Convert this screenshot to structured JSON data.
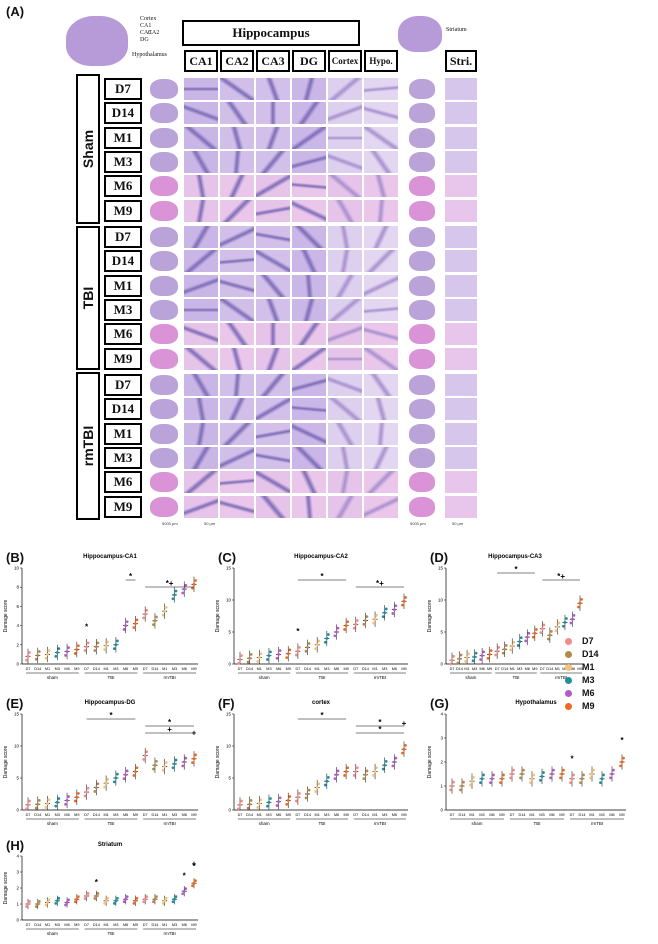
{
  "figure_label_a": "(A)",
  "atlas_left": {
    "labels": [
      "Cortex",
      "CA1",
      "CA2",
      "CA3",
      "DG",
      "Hypothalamus"
    ]
  },
  "atlas_right": {
    "label": "Striatum"
  },
  "hippocampus_header": "Hippocampus",
  "column_headers": [
    "CA1",
    "CA2",
    "CA3",
    "DG",
    "Cortex",
    "Hypo."
  ],
  "stri_header": "Stri.",
  "groups": [
    "Sham",
    "TBI",
    "rmTBI"
  ],
  "timepoints": [
    "D7",
    "D14",
    "M1",
    "M3",
    "M6",
    "M9"
  ],
  "scale_bars": [
    "5000 μm",
    "50 μm",
    "5000 μm",
    "50 μm"
  ],
  "legend": {
    "items": [
      {
        "label": "D7",
        "color": "#f28b8b"
      },
      {
        "label": "D14",
        "color": "#b38a4a"
      },
      {
        "label": "M1",
        "color": "#f4c27a"
      },
      {
        "label": "M3",
        "color": "#1f8fa0"
      },
      {
        "label": "M6",
        "color": "#b35cc7"
      },
      {
        "label": "M9",
        "color": "#ee6a1f"
      }
    ]
  },
  "chart_data": [
    {
      "id": "B",
      "type": "scatter",
      "title": "Hippocampus-CA1",
      "ylabel": "Damage score",
      "ylim": [
        0,
        10
      ],
      "yticks": [
        0,
        2,
        4,
        6,
        8,
        10
      ],
      "categories": [
        "D7",
        "D14",
        "M1",
        "M3",
        "M6",
        "M9",
        "D7",
        "D14",
        "M1",
        "M3",
        "M6",
        "M9",
        "D7",
        "D14",
        "M1",
        "M3",
        "M6",
        "M9"
      ],
      "group_labels": [
        "sham",
        "TBI",
        "rmTBI"
      ],
      "values": [
        0.8,
        0.9,
        1.0,
        1.2,
        1.3,
        1.5,
        1.8,
        1.8,
        1.9,
        2.0,
        4.0,
        4.2,
        5.2,
        4.5,
        5.5,
        7.2,
        7.8,
        8.3
      ],
      "annotations": [
        {
          "text": "*",
          "at": "TBI D7"
        },
        {
          "text": "*",
          "over": "TBI M6–M9"
        },
        {
          "text": "*+",
          "over": "rmTBI"
        }
      ]
    },
    {
      "id": "C",
      "type": "scatter",
      "title": "Hippocampus-CA2",
      "ylabel": "Damage score",
      "ylim": [
        0,
        15
      ],
      "yticks": [
        0,
        5,
        10,
        15
      ],
      "categories": [
        "D7",
        "D14",
        "M1",
        "M3",
        "M6",
        "M9",
        "D7",
        "D14",
        "M1",
        "M3",
        "M6",
        "M9",
        "D7",
        "D14",
        "M1",
        "M3",
        "M6",
        "M9"
      ],
      "group_labels": [
        "sham",
        "TBI",
        "rmTBI"
      ],
      "values": [
        0.7,
        0.9,
        1.0,
        1.3,
        1.5,
        1.6,
        2.0,
        2.6,
        3.0,
        4.0,
        5.0,
        6.0,
        6.2,
        6.8,
        7.0,
        8.0,
        8.5,
        9.8
      ],
      "annotations": [
        {
          "text": "*",
          "at": "TBI D7"
        },
        {
          "text": "*",
          "over": "TBI"
        },
        {
          "text": "*+",
          "over": "rmTBI"
        }
      ]
    },
    {
      "id": "D",
      "type": "scatter",
      "title": "Hippocampus-CA3",
      "ylabel": "Damage score",
      "ylim": [
        0,
        15
      ],
      "yticks": [
        0,
        5,
        10,
        15
      ],
      "categories": [
        "D7",
        "D14",
        "M1",
        "M3",
        "M6",
        "M9",
        "D7",
        "D14",
        "M1",
        "M3",
        "M6",
        "M9",
        "D7",
        "D14",
        "M1",
        "M3",
        "M6",
        "M9"
      ],
      "group_labels": [
        "sham",
        "TBI",
        "rmTBI"
      ],
      "values": [
        0.6,
        0.8,
        1.0,
        1.1,
        1.3,
        1.5,
        2.0,
        2.3,
        2.8,
        3.5,
        4.2,
        4.8,
        5.5,
        4.5,
        5.8,
        6.5,
        7.0,
        9.5
      ],
      "annotations": [
        {
          "text": "*",
          "over": "TBI"
        },
        {
          "text": "*+",
          "over": "rmTBI"
        }
      ]
    },
    {
      "id": "E",
      "type": "scatter",
      "title": "Hippocampus-DG",
      "ylabel": "Damage score",
      "ylim": [
        0,
        15
      ],
      "yticks": [
        0,
        5,
        10,
        15
      ],
      "categories": [
        "D7",
        "D14",
        "M1",
        "M3",
        "M6",
        "M9",
        "D7",
        "D14",
        "M1",
        "M3",
        "M6",
        "M9",
        "D7",
        "D14",
        "M1",
        "M3",
        "M6",
        "M9"
      ],
      "group_labels": [
        "sham",
        "TBI",
        "rmTBI"
      ],
      "values": [
        0.8,
        0.9,
        1.0,
        1.2,
        1.5,
        2.0,
        2.8,
        3.5,
        4.2,
        5.0,
        5.5,
        6.0,
        8.5,
        7.0,
        6.8,
        7.2,
        7.5,
        8.0
      ],
      "annotations": [
        {
          "text": "*",
          "over": "TBI"
        },
        {
          "text": "*",
          "over": "rmTBI"
        },
        {
          "text": "+",
          "over": "rmTBI"
        },
        {
          "text": "+",
          "at": "rmTBI M9"
        }
      ]
    },
    {
      "id": "F",
      "type": "scatter",
      "title": "cortex",
      "ylabel": "Damage score",
      "ylim": [
        0,
        15
      ],
      "yticks": [
        0,
        5,
        10,
        15
      ],
      "categories": [
        "D7",
        "D14",
        "M1",
        "M3",
        "M6",
        "M9",
        "D7",
        "D14",
        "M1",
        "M3",
        "M6",
        "M9",
        "D7",
        "D14",
        "M1",
        "M3",
        "M6",
        "M9"
      ],
      "group_labels": [
        "sham",
        "TBI",
        "rmTBI"
      ],
      "values": [
        0.8,
        0.9,
        1.0,
        1.2,
        1.3,
        1.5,
        2.0,
        2.5,
        3.5,
        4.5,
        5.5,
        6.0,
        6.0,
        5.5,
        6.0,
        7.0,
        7.5,
        9.5
      ],
      "annotations": [
        {
          "text": "*",
          "over": "TBI"
        },
        {
          "text": "*",
          "over": "rmTBI"
        },
        {
          "text": "*",
          "over": "rmTBI"
        },
        {
          "text": "+",
          "at": "rmTBI M9"
        }
      ]
    },
    {
      "id": "G",
      "type": "scatter",
      "title": "Hypothalamus",
      "ylabel": "Damage score",
      "ylim": [
        0,
        4
      ],
      "yticks": [
        0,
        1,
        2,
        3,
        4
      ],
      "categories": [
        "D7",
        "D14",
        "M1",
        "M3",
        "M6",
        "M9",
        "D7",
        "D14",
        "M1",
        "M3",
        "M6",
        "M9",
        "D7",
        "D14",
        "M1",
        "M3",
        "M6",
        "M9"
      ],
      "group_labels": [
        "sham",
        "TBI",
        "rmTBI"
      ],
      "values": [
        1.0,
        1.0,
        1.2,
        1.3,
        1.3,
        1.3,
        1.5,
        1.5,
        1.3,
        1.4,
        1.5,
        1.5,
        1.3,
        1.3,
        1.5,
        1.3,
        1.5,
        2.0
      ],
      "annotations": [
        {
          "text": "*",
          "at": "rmTBI D7"
        },
        {
          "text": "*",
          "at": "rmTBI M9"
        }
      ]
    },
    {
      "id": "H",
      "type": "scatter",
      "title": "Striatum",
      "ylabel": "Damage score",
      "ylim": [
        0,
        4
      ],
      "yticks": [
        0,
        1,
        2,
        3,
        4
      ],
      "categories": [
        "D7",
        "D14",
        "M1",
        "M3",
        "M6",
        "M9",
        "D7",
        "D14",
        "M1",
        "M3",
        "M6",
        "M9",
        "D7",
        "D14",
        "M1",
        "M3",
        "M6",
        "M9"
      ],
      "group_labels": [
        "sham",
        "TBI",
        "rmTBI"
      ],
      "values": [
        1.0,
        1.0,
        1.1,
        1.2,
        1.1,
        1.3,
        1.5,
        1.5,
        1.2,
        1.2,
        1.3,
        1.2,
        1.3,
        1.3,
        1.2,
        1.3,
        1.8,
        2.3
      ],
      "annotations": [
        {
          "text": "*",
          "at": "TBI D14"
        },
        {
          "text": "*",
          "at": "rmTBI M6"
        },
        {
          "text": "*",
          "at": "rmTBI M9"
        },
        {
          "text": "+",
          "at": "rmTBI M9"
        }
      ]
    }
  ]
}
